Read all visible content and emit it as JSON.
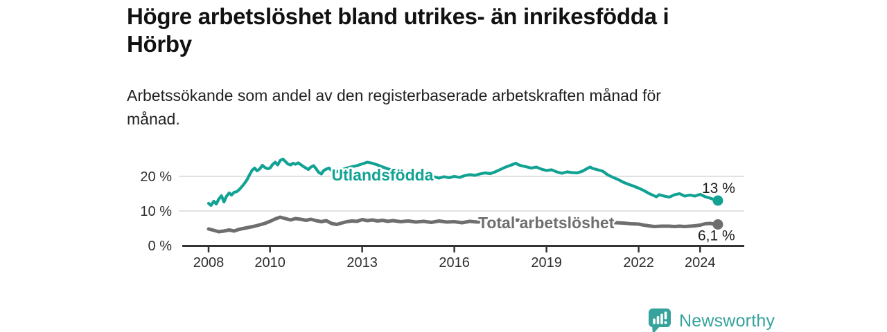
{
  "header": {
    "title": "Högre arbetslöshet bland utrikes- än inrikesfödda i\nHörby",
    "subtitle": "Arbetssökande som andel av den registerbaserade arbetskraften månad för\nmånad."
  },
  "footer": {
    "brand": "Newsworthy"
  },
  "colors": {
    "series_utlandsfodda": "#12a294",
    "series_total": "#6e6e6e",
    "axis": "#333333",
    "grid": "#d9d9d9",
    "tick_text": "#2e2e2e",
    "title_text": "#111111",
    "logo_teal": "#35a39c"
  },
  "chart_data": {
    "type": "line",
    "title": "Högre arbetslöshet bland utrikes- än inrikesfödda i Hörby",
    "subtitle": "Arbetssökande som andel av den registerbaserade arbetskraften månad för månad.",
    "xlabel": "",
    "ylabel": "",
    "x_unit": "decimal_year",
    "xlim": [
      2007.2,
      2025.4
    ],
    "ylim": [
      0,
      26
    ],
    "grid": "horizontal",
    "legend": "inline-labels",
    "yticks": [
      {
        "value": 0,
        "label": "0 %"
      },
      {
        "value": 10,
        "label": "10 %"
      },
      {
        "value": 20,
        "label": "20 %"
      }
    ],
    "xticks": [
      {
        "value": 2008,
        "label": "2008"
      },
      {
        "value": 2010,
        "label": "2010"
      },
      {
        "value": 2013,
        "label": "2013"
      },
      {
        "value": 2016,
        "label": "2016"
      },
      {
        "value": 2019,
        "label": "2019"
      },
      {
        "value": 2022,
        "label": "2022"
      },
      {
        "value": 2024,
        "label": "2024"
      }
    ],
    "series": [
      {
        "name": "Utlandsfödda",
        "color": "#12a294",
        "end_label": "13 %",
        "end_value": 13.0,
        "points": [
          [
            2008.0,
            12.2
          ],
          [
            2008.08,
            11.6
          ],
          [
            2008.17,
            12.8
          ],
          [
            2008.25,
            12.0
          ],
          [
            2008.33,
            13.4
          ],
          [
            2008.42,
            14.4
          ],
          [
            2008.5,
            12.6
          ],
          [
            2008.58,
            14.2
          ],
          [
            2008.67,
            15.2
          ],
          [
            2008.75,
            14.6
          ],
          [
            2008.83,
            15.4
          ],
          [
            2008.92,
            15.6
          ],
          [
            2009.0,
            16.2
          ],
          [
            2009.08,
            17.0
          ],
          [
            2009.17,
            18.0
          ],
          [
            2009.25,
            19.0
          ],
          [
            2009.33,
            20.4
          ],
          [
            2009.42,
            21.8
          ],
          [
            2009.5,
            22.4
          ],
          [
            2009.58,
            21.6
          ],
          [
            2009.67,
            22.2
          ],
          [
            2009.75,
            23.2
          ],
          [
            2009.83,
            22.6
          ],
          [
            2009.92,
            22.2
          ],
          [
            2010.0,
            22.4
          ],
          [
            2010.08,
            23.4
          ],
          [
            2010.17,
            24.1
          ],
          [
            2010.25,
            23.3
          ],
          [
            2010.33,
            24.6
          ],
          [
            2010.42,
            25.0
          ],
          [
            2010.5,
            24.3
          ],
          [
            2010.58,
            23.6
          ],
          [
            2010.67,
            23.3
          ],
          [
            2010.75,
            23.8
          ],
          [
            2010.83,
            23.5
          ],
          [
            2010.92,
            23.9
          ],
          [
            2011.0,
            23.4
          ],
          [
            2011.08,
            22.9
          ],
          [
            2011.17,
            22.4
          ],
          [
            2011.25,
            22.0
          ],
          [
            2011.33,
            22.7
          ],
          [
            2011.42,
            23.1
          ],
          [
            2011.5,
            22.2
          ],
          [
            2011.58,
            21.2
          ],
          [
            2011.67,
            20.7
          ],
          [
            2011.75,
            21.7
          ],
          [
            2011.83,
            22.1
          ],
          [
            2011.92,
            22.4
          ],
          [
            2012.0,
            21.7
          ],
          [
            2012.17,
            21.3
          ],
          [
            2012.33,
            21.9
          ],
          [
            2012.5,
            22.4
          ],
          [
            2012.67,
            22.8
          ],
          [
            2012.83,
            23.1
          ],
          [
            2013.0,
            23.6
          ],
          [
            2013.17,
            24.1
          ],
          [
            2013.33,
            23.8
          ],
          [
            2013.5,
            23.3
          ],
          [
            2013.67,
            22.7
          ],
          [
            2013.83,
            22.2
          ],
          [
            2014.0,
            21.8
          ],
          [
            2014.17,
            21.4
          ],
          [
            2014.33,
            21.0
          ],
          [
            2014.5,
            20.7
          ],
          [
            2014.67,
            20.4
          ],
          [
            2014.83,
            20.1
          ],
          [
            2015.0,
            20.0
          ],
          [
            2015.17,
            19.7
          ],
          [
            2015.33,
            19.9
          ],
          [
            2015.5,
            19.5
          ],
          [
            2015.67,
            19.9
          ],
          [
            2015.83,
            19.6
          ],
          [
            2016.0,
            20.0
          ],
          [
            2016.17,
            19.7
          ],
          [
            2016.33,
            20.2
          ],
          [
            2016.5,
            20.5
          ],
          [
            2016.67,
            20.3
          ],
          [
            2016.83,
            20.7
          ],
          [
            2017.0,
            21.0
          ],
          [
            2017.17,
            20.8
          ],
          [
            2017.33,
            21.3
          ],
          [
            2017.5,
            22.0
          ],
          [
            2017.67,
            22.7
          ],
          [
            2017.83,
            23.2
          ],
          [
            2018.0,
            23.8
          ],
          [
            2018.08,
            23.4
          ],
          [
            2018.17,
            23.1
          ],
          [
            2018.33,
            22.8
          ],
          [
            2018.5,
            22.4
          ],
          [
            2018.67,
            22.7
          ],
          [
            2018.83,
            22.1
          ],
          [
            2019.0,
            21.7
          ],
          [
            2019.17,
            21.9
          ],
          [
            2019.33,
            21.3
          ],
          [
            2019.5,
            20.9
          ],
          [
            2019.67,
            21.3
          ],
          [
            2019.83,
            21.1
          ],
          [
            2020.0,
            21.0
          ],
          [
            2020.17,
            21.5
          ],
          [
            2020.33,
            22.3
          ],
          [
            2020.42,
            22.7
          ],
          [
            2020.5,
            22.3
          ],
          [
            2020.67,
            21.9
          ],
          [
            2020.83,
            21.5
          ],
          [
            2021.0,
            20.4
          ],
          [
            2021.17,
            19.7
          ],
          [
            2021.33,
            19.1
          ],
          [
            2021.5,
            18.3
          ],
          [
            2021.67,
            17.7
          ],
          [
            2021.83,
            17.2
          ],
          [
            2022.0,
            16.6
          ],
          [
            2022.17,
            15.9
          ],
          [
            2022.33,
            15.1
          ],
          [
            2022.5,
            14.4
          ],
          [
            2022.58,
            14.1
          ],
          [
            2022.67,
            14.7
          ],
          [
            2022.83,
            14.3
          ],
          [
            2023.0,
            14.0
          ],
          [
            2023.17,
            14.7
          ],
          [
            2023.33,
            15.0
          ],
          [
            2023.5,
            14.3
          ],
          [
            2023.67,
            14.6
          ],
          [
            2023.83,
            14.3
          ],
          [
            2024.0,
            14.8
          ],
          [
            2024.17,
            14.1
          ],
          [
            2024.33,
            13.7
          ],
          [
            2024.42,
            13.4
          ],
          [
            2024.58,
            13.0
          ]
        ]
      },
      {
        "name": "Total arbetslöshet",
        "color": "#6e6e6e",
        "end_label": "6,1 %",
        "end_value": 6.1,
        "points": [
          [
            2008.0,
            4.8
          ],
          [
            2008.17,
            4.4
          ],
          [
            2008.33,
            4.0
          ],
          [
            2008.5,
            4.2
          ],
          [
            2008.67,
            4.5
          ],
          [
            2008.83,
            4.2
          ],
          [
            2009.0,
            4.7
          ],
          [
            2009.17,
            5.0
          ],
          [
            2009.33,
            5.3
          ],
          [
            2009.5,
            5.6
          ],
          [
            2009.67,
            6.0
          ],
          [
            2009.83,
            6.4
          ],
          [
            2010.0,
            7.0
          ],
          [
            2010.17,
            7.7
          ],
          [
            2010.33,
            8.2
          ],
          [
            2010.5,
            7.8
          ],
          [
            2010.67,
            7.4
          ],
          [
            2010.83,
            7.8
          ],
          [
            2011.0,
            7.6
          ],
          [
            2011.17,
            7.3
          ],
          [
            2011.33,
            7.6
          ],
          [
            2011.5,
            7.2
          ],
          [
            2011.67,
            6.9
          ],
          [
            2011.83,
            7.2
          ],
          [
            2012.0,
            6.4
          ],
          [
            2012.17,
            6.1
          ],
          [
            2012.33,
            6.5
          ],
          [
            2012.5,
            6.9
          ],
          [
            2012.67,
            7.1
          ],
          [
            2012.83,
            7.0
          ],
          [
            2013.0,
            7.5
          ],
          [
            2013.17,
            7.2
          ],
          [
            2013.33,
            7.4
          ],
          [
            2013.5,
            7.1
          ],
          [
            2013.67,
            7.3
          ],
          [
            2013.83,
            7.0
          ],
          [
            2014.0,
            7.2
          ],
          [
            2014.25,
            6.9
          ],
          [
            2014.5,
            7.1
          ],
          [
            2014.75,
            6.8
          ],
          [
            2015.0,
            7.0
          ],
          [
            2015.25,
            6.7
          ],
          [
            2015.5,
            7.1
          ],
          [
            2015.75,
            6.8
          ],
          [
            2016.0,
            6.9
          ],
          [
            2016.25,
            6.6
          ],
          [
            2016.5,
            7.0
          ],
          [
            2016.75,
            6.8
          ],
          [
            2017.0,
            7.0
          ],
          [
            2017.25,
            6.8
          ],
          [
            2017.5,
            7.1
          ],
          [
            2017.75,
            7.0
          ],
          [
            2018.0,
            7.4
          ],
          [
            2018.25,
            7.1
          ],
          [
            2018.5,
            6.9
          ],
          [
            2018.75,
            6.7
          ],
          [
            2019.0,
            6.8
          ],
          [
            2019.25,
            6.6
          ],
          [
            2019.5,
            6.5
          ],
          [
            2019.75,
            6.6
          ],
          [
            2020.0,
            6.7
          ],
          [
            2020.25,
            7.1
          ],
          [
            2020.42,
            7.2
          ],
          [
            2020.58,
            7.0
          ],
          [
            2020.75,
            6.9
          ],
          [
            2021.0,
            6.7
          ],
          [
            2021.25,
            6.6
          ],
          [
            2021.5,
            6.5
          ],
          [
            2021.75,
            6.3
          ],
          [
            2022.0,
            6.2
          ],
          [
            2022.17,
            5.9
          ],
          [
            2022.33,
            5.7
          ],
          [
            2022.5,
            5.5
          ],
          [
            2022.75,
            5.6
          ],
          [
            2023.0,
            5.6
          ],
          [
            2023.17,
            5.5
          ],
          [
            2023.33,
            5.6
          ],
          [
            2023.5,
            5.5
          ],
          [
            2023.67,
            5.6
          ],
          [
            2023.83,
            5.7
          ],
          [
            2024.0,
            5.9
          ],
          [
            2024.17,
            6.3
          ],
          [
            2024.33,
            6.4
          ],
          [
            2024.45,
            6.2
          ],
          [
            2024.58,
            6.1
          ]
        ]
      }
    ]
  }
}
